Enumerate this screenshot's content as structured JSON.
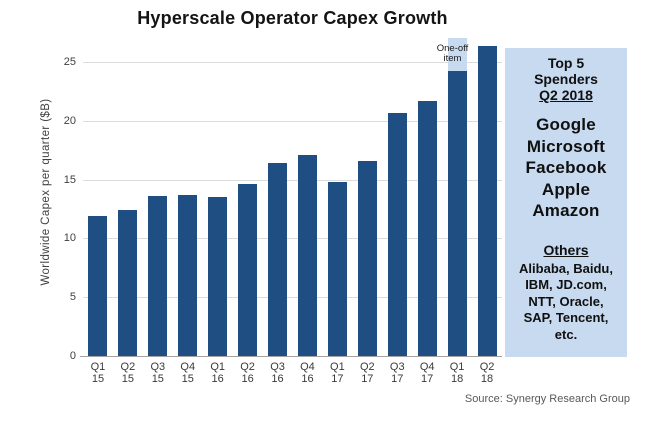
{
  "title": "Hyperscale Operator Capex Growth",
  "chart_data": {
    "type": "bar",
    "title": "Hyperscale Operator Capex Growth",
    "xlabel": "",
    "ylabel": "Worldwide Capex per quarter ($B)",
    "ylim": [
      0,
      27
    ],
    "yticks": [
      0,
      5,
      10,
      15,
      20,
      25
    ],
    "grid": true,
    "legend": false,
    "categories": [
      "Q1 15",
      "Q2 15",
      "Q3 15",
      "Q4 15",
      "Q1 16",
      "Q2 16",
      "Q3 16",
      "Q4 16",
      "Q1 17",
      "Q2 17",
      "Q3 17",
      "Q4 17",
      "Q1 18",
      "Q2 18"
    ],
    "values": [
      11.9,
      12.4,
      13.6,
      13.7,
      13.5,
      14.6,
      16.4,
      17.1,
      14.8,
      16.6,
      20.7,
      21.7,
      24.2,
      26.4
    ],
    "one_off": {
      "category": "Q1 18",
      "index": 12,
      "amount": 2.8,
      "total": 27.0,
      "label": "One-off item"
    }
  },
  "annotation": {
    "line1": "One-off",
    "line2": "item"
  },
  "sidebar": {
    "heading_line1": "Top 5",
    "heading_line2": "Spenders",
    "heading_underlined": "Q2 2018",
    "top5": [
      "Google",
      "Microsoft",
      "Facebook",
      "Apple",
      "Amazon"
    ],
    "others_heading": "Others",
    "others_lines": [
      "Alibaba, Baidu,",
      "IBM, JD.com,",
      "NTT, Oracle,",
      "SAP, Tencent,",
      "etc."
    ]
  },
  "source": "Source: Synergy Research Group",
  "colors": {
    "bar": "#1f4e82",
    "one_off": "#c7daf0",
    "panel": "#c7daf0",
    "grid": "#dcdcdc",
    "axis": "#a3a3a3",
    "title_text": "#141414",
    "tick_text": "#3f3f3f",
    "source_text": "#595959"
  }
}
